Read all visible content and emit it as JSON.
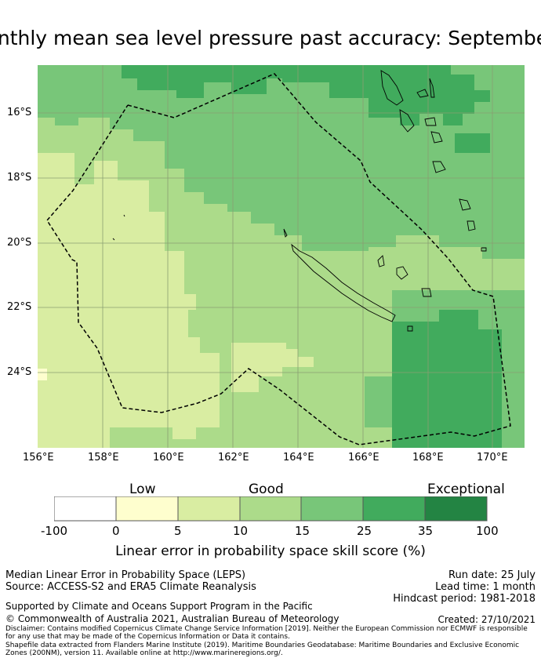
{
  "title": "Monthly mean sea level pressure past accuracy: September",
  "map": {
    "lat_labels": [
      "16°S",
      "18°S",
      "20°S",
      "22°S",
      "24°S"
    ],
    "lon_labels": [
      "156°E",
      "158°E",
      "160°E",
      "162°E",
      "164°E",
      "166°E",
      "168°E",
      "170°E"
    ],
    "colors": {
      "c0_5": "#fefece",
      "c5_10": "#d9eda2",
      "c10_15": "#acdb8a",
      "c15_25": "#78c679",
      "c25_35": "#41ab5d",
      "c35_100": "#238443"
    }
  },
  "colorbar": {
    "categories": [
      "Low",
      "Good",
      "Exceptional"
    ],
    "ticks": [
      "-100",
      "0",
      "5",
      "10",
      "15",
      "25",
      "35",
      "100"
    ],
    "label": "Linear error in probability space skill score (%)"
  },
  "footer": {
    "line1": "Median Linear Error in Probability Space (LEPS)",
    "line2": "Source: ACCESS-S2 and ERA5 Climate Reanalysis",
    "run_date": "Run date: 25 July",
    "lead_time": "Lead time: 1 month",
    "hindcast": "Hindcast period: 1981-2018",
    "support": "Supported by Climate and Oceans Support Program in the Pacific",
    "copyright": "© Commonwealth of Australia 2021, Australian Bureau of Meteorology",
    "created": "Created: 27/10/2021",
    "disclaimer": "Disclaimer: Contains modified Copernicus Climate Change Service Information [2019]. Neither the European Commission nor ECMWF is responsible for any use that may be made of the Copernicus Information or Data it contains.",
    "shapefile": "Shapefile data extracted from Flanders Marine Institute (2019). Maritime Boundaries Geodatabase: Maritime Boundaries and Exclusive Economic Zones (200NM), version 11. Available online at http://www.marineregions.org/."
  }
}
